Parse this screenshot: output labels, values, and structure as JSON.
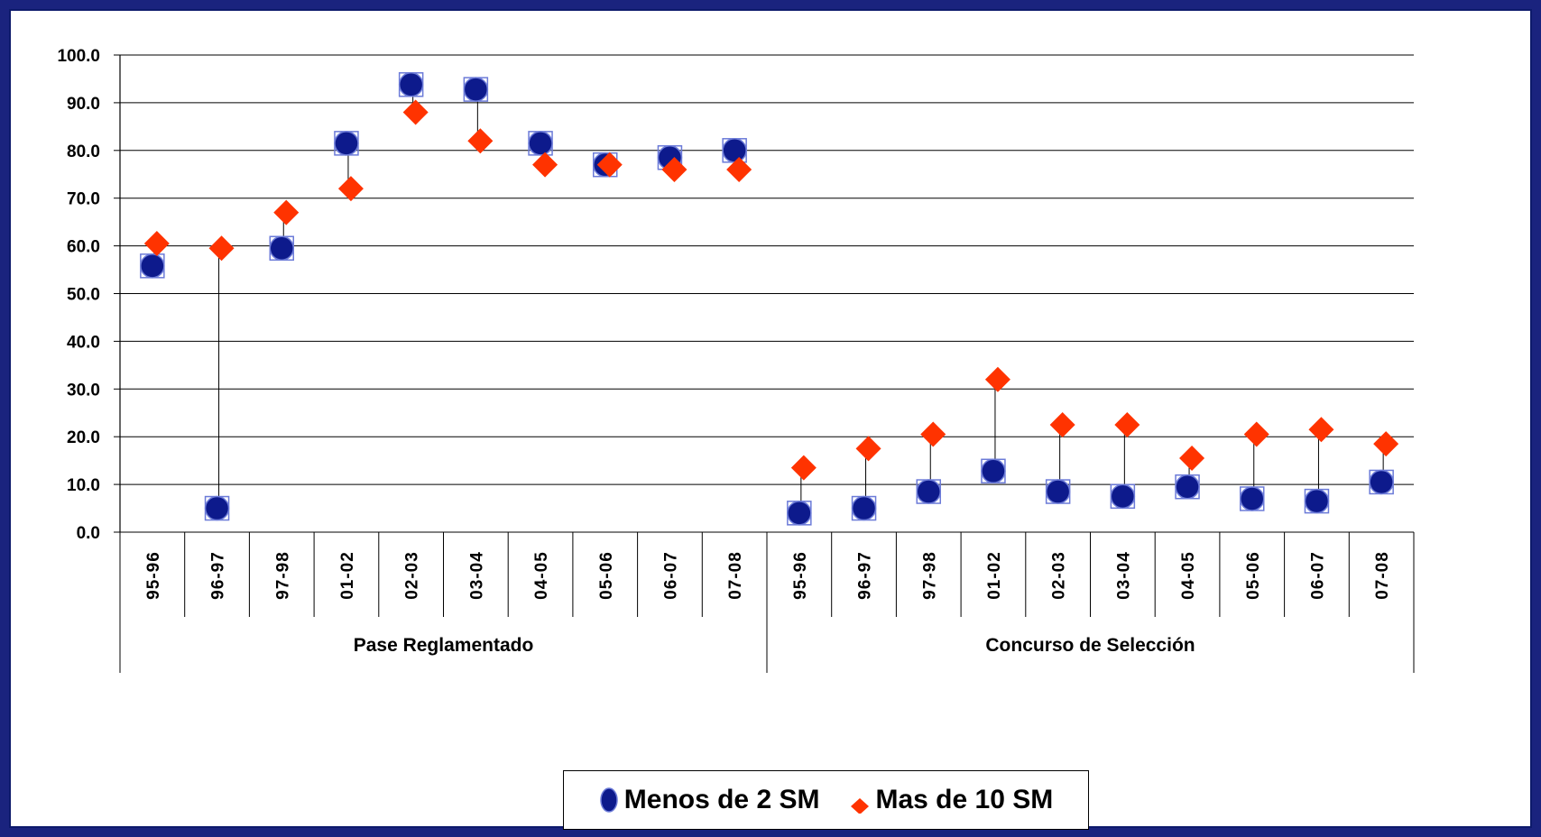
{
  "chart_data": {
    "type": "scatter",
    "title": "",
    "xlabel": "",
    "ylabel": "",
    "ylim": [
      0,
      100
    ],
    "y_ticks": [
      "100.0",
      "90.0",
      "80.0",
      "70.0",
      "60.0",
      "50.0",
      "40.0",
      "30.0",
      "20.0",
      "10.0",
      "0.0"
    ],
    "grid": true,
    "legend_position": "bottom-center",
    "groups": [
      {
        "label": "Pase Reglamentado",
        "categories": [
          "95-96",
          "96-97",
          "97-98",
          "01-02",
          "02-03",
          "03-04",
          "04-05",
          "05-06",
          "06-07",
          "07-08"
        ]
      },
      {
        "label": "Concurso de Selección",
        "categories": [
          "95-96",
          "96-97",
          "97-98",
          "01-02",
          "02-03",
          "03-04",
          "04-05",
          "05-06",
          "06-07",
          "07-08"
        ]
      }
    ],
    "series": [
      {
        "name": "Menos de 2 SM",
        "marker": "circle",
        "color": "#0d1a8c",
        "values": [
          55.8,
          5.0,
          59.5,
          81.5,
          93.8,
          92.8,
          81.5,
          77.0,
          78.5,
          80.0,
          4.0,
          5.0,
          8.5,
          12.8,
          8.5,
          7.5,
          9.5,
          7.0,
          6.5,
          10.5
        ]
      },
      {
        "name": "Mas de 10 SM",
        "marker": "diamond",
        "color": "#ff3300",
        "values": [
          60.5,
          59.5,
          67.0,
          72.0,
          88.0,
          82.0,
          77.0,
          77.0,
          76.0,
          76.0,
          13.5,
          17.5,
          20.5,
          32.0,
          22.5,
          22.5,
          15.5,
          20.5,
          21.5,
          18.5
        ]
      }
    ]
  }
}
